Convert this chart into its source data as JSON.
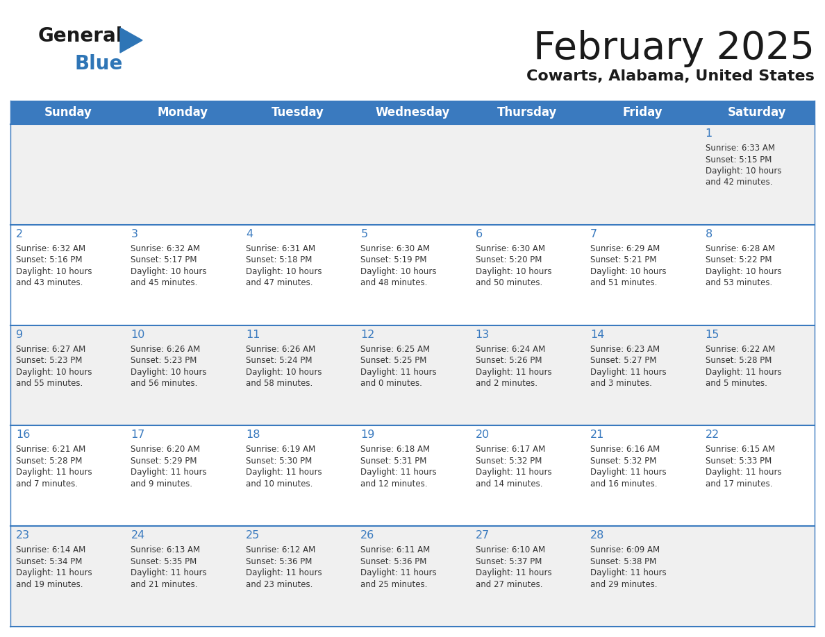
{
  "title": "February 2025",
  "subtitle": "Cowarts, Alabama, United States",
  "header_bg": "#3a7abf",
  "header_text": "#ffffff",
  "day_names": [
    "Sunday",
    "Monday",
    "Tuesday",
    "Wednesday",
    "Thursday",
    "Friday",
    "Saturday"
  ],
  "row_bg_odd": "#f0f0f0",
  "row_bg_even": "#ffffff",
  "divider_color": "#3a7abf",
  "text_color": "#444444",
  "date_color": "#3a7abf",
  "cell_text_color": "#333333",
  "calendar": [
    [
      null,
      null,
      null,
      null,
      null,
      null,
      {
        "day": 1,
        "sunrise": "6:33 AM",
        "sunset": "5:15 PM",
        "daylight": "10 hours and 42 minutes."
      }
    ],
    [
      {
        "day": 2,
        "sunrise": "6:32 AM",
        "sunset": "5:16 PM",
        "daylight": "10 hours and 43 minutes."
      },
      {
        "day": 3,
        "sunrise": "6:32 AM",
        "sunset": "5:17 PM",
        "daylight": "10 hours and 45 minutes."
      },
      {
        "day": 4,
        "sunrise": "6:31 AM",
        "sunset": "5:18 PM",
        "daylight": "10 hours and 47 minutes."
      },
      {
        "day": 5,
        "sunrise": "6:30 AM",
        "sunset": "5:19 PM",
        "daylight": "10 hours and 48 minutes."
      },
      {
        "day": 6,
        "sunrise": "6:30 AM",
        "sunset": "5:20 PM",
        "daylight": "10 hours and 50 minutes."
      },
      {
        "day": 7,
        "sunrise": "6:29 AM",
        "sunset": "5:21 PM",
        "daylight": "10 hours and 51 minutes."
      },
      {
        "day": 8,
        "sunrise": "6:28 AM",
        "sunset": "5:22 PM",
        "daylight": "10 hours and 53 minutes."
      }
    ],
    [
      {
        "day": 9,
        "sunrise": "6:27 AM",
        "sunset": "5:23 PM",
        "daylight": "10 hours and 55 minutes."
      },
      {
        "day": 10,
        "sunrise": "6:26 AM",
        "sunset": "5:23 PM",
        "daylight": "10 hours and 56 minutes."
      },
      {
        "day": 11,
        "sunrise": "6:26 AM",
        "sunset": "5:24 PM",
        "daylight": "10 hours and 58 minutes."
      },
      {
        "day": 12,
        "sunrise": "6:25 AM",
        "sunset": "5:25 PM",
        "daylight": "11 hours and 0 minutes."
      },
      {
        "day": 13,
        "sunrise": "6:24 AM",
        "sunset": "5:26 PM",
        "daylight": "11 hours and 2 minutes."
      },
      {
        "day": 14,
        "sunrise": "6:23 AM",
        "sunset": "5:27 PM",
        "daylight": "11 hours and 3 minutes."
      },
      {
        "day": 15,
        "sunrise": "6:22 AM",
        "sunset": "5:28 PM",
        "daylight": "11 hours and 5 minutes."
      }
    ],
    [
      {
        "day": 16,
        "sunrise": "6:21 AM",
        "sunset": "5:28 PM",
        "daylight": "11 hours and 7 minutes."
      },
      {
        "day": 17,
        "sunrise": "6:20 AM",
        "sunset": "5:29 PM",
        "daylight": "11 hours and 9 minutes."
      },
      {
        "day": 18,
        "sunrise": "6:19 AM",
        "sunset": "5:30 PM",
        "daylight": "11 hours and 10 minutes."
      },
      {
        "day": 19,
        "sunrise": "6:18 AM",
        "sunset": "5:31 PM",
        "daylight": "11 hours and 12 minutes."
      },
      {
        "day": 20,
        "sunrise": "6:17 AM",
        "sunset": "5:32 PM",
        "daylight": "11 hours and 14 minutes."
      },
      {
        "day": 21,
        "sunrise": "6:16 AM",
        "sunset": "5:32 PM",
        "daylight": "11 hours and 16 minutes."
      },
      {
        "day": 22,
        "sunrise": "6:15 AM",
        "sunset": "5:33 PM",
        "daylight": "11 hours and 17 minutes."
      }
    ],
    [
      {
        "day": 23,
        "sunrise": "6:14 AM",
        "sunset": "5:34 PM",
        "daylight": "11 hours and 19 minutes."
      },
      {
        "day": 24,
        "sunrise": "6:13 AM",
        "sunset": "5:35 PM",
        "daylight": "11 hours and 21 minutes."
      },
      {
        "day": 25,
        "sunrise": "6:12 AM",
        "sunset": "5:36 PM",
        "daylight": "11 hours and 23 minutes."
      },
      {
        "day": 26,
        "sunrise": "6:11 AM",
        "sunset": "5:36 PM",
        "daylight": "11 hours and 25 minutes."
      },
      {
        "day": 27,
        "sunrise": "6:10 AM",
        "sunset": "5:37 PM",
        "daylight": "11 hours and 27 minutes."
      },
      {
        "day": 28,
        "sunrise": "6:09 AM",
        "sunset": "5:38 PM",
        "daylight": "11 hours and 29 minutes."
      },
      null
    ]
  ]
}
